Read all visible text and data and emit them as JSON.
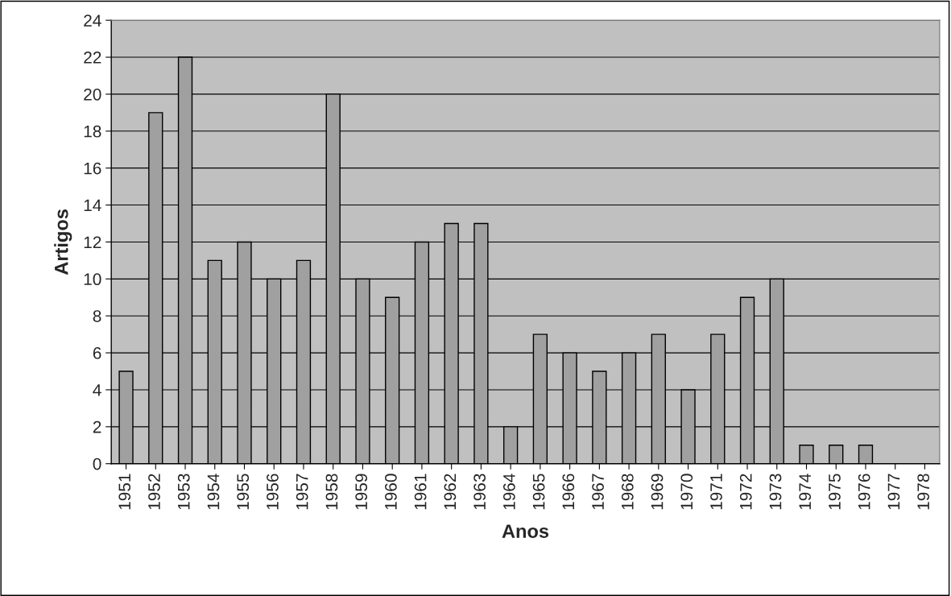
{
  "chart_data": {
    "type": "bar",
    "xlabel": "Anos",
    "ylabel": "Artigos",
    "categories": [
      "1951",
      "1952",
      "1953",
      "1954",
      "1955",
      "1956",
      "1957",
      "1958",
      "1959",
      "1960",
      "1961",
      "1962",
      "1963",
      "1964",
      "1965",
      "1966",
      "1967",
      "1968",
      "1969",
      "1970",
      "1971",
      "1972",
      "1973",
      "1974",
      "1975",
      "1976",
      "1977",
      "1978"
    ],
    "values": [
      5,
      19,
      22,
      11,
      12,
      10,
      11,
      20,
      10,
      9,
      12,
      13,
      13,
      2,
      7,
      6,
      5,
      6,
      7,
      4,
      7,
      9,
      10,
      1,
      1,
      1,
      0,
      0
    ],
    "color": "#a0a0a0",
    "ylim": [
      0,
      24
    ],
    "yticks": [
      0,
      2,
      4,
      6,
      8,
      10,
      12,
      14,
      16,
      18,
      20,
      22,
      24
    ],
    "grid": "y",
    "legend": false
  }
}
